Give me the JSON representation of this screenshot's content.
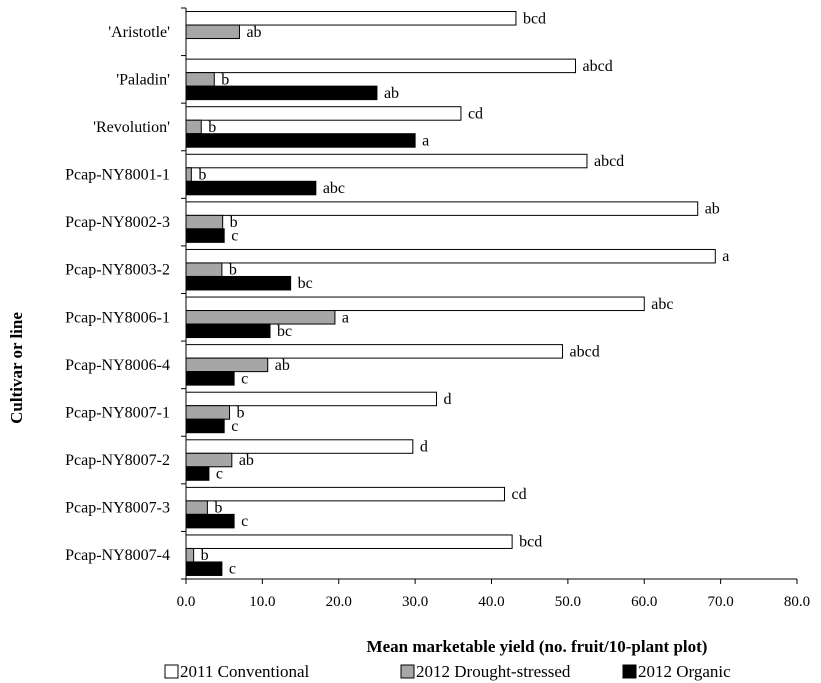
{
  "chart_data": {
    "type": "bar",
    "orientation": "horizontal",
    "xlabel": "Mean marketable yield (no. fruit/10-plant plot)",
    "ylabel": "Cultivar or line",
    "xlim": [
      0,
      80
    ],
    "xticks": [
      "0.0",
      "10.0",
      "20.0",
      "30.0",
      "40.0",
      "50.0",
      "60.0",
      "70.0",
      "80.0"
    ],
    "grid": false,
    "legend_position": "bottom",
    "categories": [
      "'Aristotle'",
      "'Paladin'",
      "'Revolution'",
      "Pcap-NY8001-1",
      "Pcap-NY8002-3",
      "Pcap-NY8003-2",
      "Pcap-NY8006-1",
      "Pcap-NY8006-4",
      "Pcap-NY8007-1",
      "Pcap-NY8007-2",
      "Pcap-NY8007-3",
      "Pcap-NY8007-4"
    ],
    "series": [
      {
        "name": "2011 Conventional",
        "color": "#ffffff",
        "values": [
          43.2,
          51.0,
          36.0,
          52.5,
          67.0,
          69.3,
          60.0,
          49.3,
          32.8,
          29.7,
          41.7,
          42.7
        ],
        "labels": [
          "bcd",
          "abcd",
          "cd",
          "abcd",
          "ab",
          "a",
          "abc",
          "abcd",
          "d",
          "d",
          "cd",
          "bcd"
        ]
      },
      {
        "name": "2012 Drought-stressed",
        "color": "#a6a6a6",
        "values": [
          7.0,
          3.7,
          2.0,
          0.7,
          4.8,
          4.7,
          19.5,
          10.7,
          5.7,
          6.0,
          2.8,
          1.0
        ],
        "labels": [
          "ab",
          "b",
          "b",
          "b",
          "b",
          "b",
          "a",
          "ab",
          "b",
          "ab",
          "b",
          "b"
        ]
      },
      {
        "name": "2012 Organic",
        "color": "#000000",
        "values": [
          null,
          25.0,
          30.0,
          17.0,
          5.0,
          13.7,
          11.0,
          6.3,
          5.0,
          3.0,
          6.3,
          4.7
        ],
        "labels": [
          "",
          "ab",
          "a",
          "abc",
          "c",
          "bc",
          "bc",
          "c",
          "c",
          "c",
          "c",
          "c"
        ]
      }
    ]
  }
}
